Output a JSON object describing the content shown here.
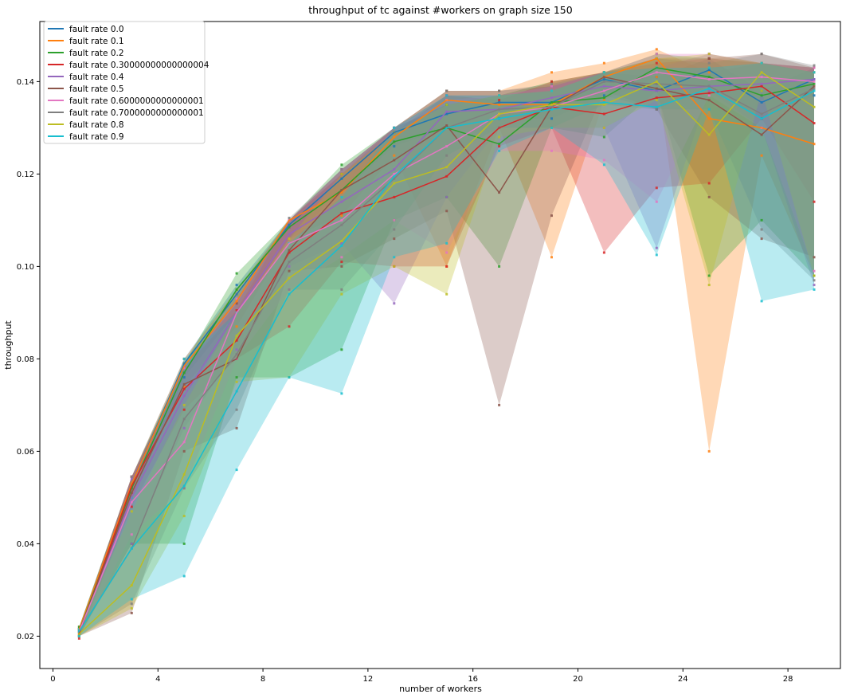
{
  "chart_data": {
    "type": "line",
    "title": "throughput of tc against #workers on graph size 150",
    "xlabel": "number of workers",
    "ylabel": "throughput",
    "xlim": [
      -0.5,
      30.0
    ],
    "ylim": [
      0.013,
      0.153
    ],
    "xticks": [
      0,
      4,
      8,
      12,
      16,
      20,
      24,
      28
    ],
    "yticks": [
      0.02,
      0.04,
      0.06,
      0.08,
      0.1,
      0.12,
      0.14
    ],
    "ytick_labels": [
      "0.02",
      "0.04",
      "0.06",
      "0.08",
      "0.10",
      "0.12",
      "0.14"
    ],
    "grid": false,
    "legend_position": "top-left",
    "x": [
      1,
      3,
      5,
      7,
      9,
      11,
      13,
      15,
      17,
      19,
      21,
      23,
      25,
      27,
      29
    ],
    "series": [
      {
        "name": "fault rate 0.0",
        "color": "#1f77b4",
        "mean": [
          0.0215,
          0.053,
          0.079,
          0.094,
          0.109,
          0.119,
          0.129,
          0.133,
          0.1355,
          0.1355,
          0.1405,
          0.138,
          0.1425,
          0.1355,
          0.1405
        ],
        "min": [
          0.021,
          0.05,
          0.076,
          0.09,
          0.106,
          0.116,
          0.126,
          0.13,
          0.132,
          0.132,
          0.137,
          0.134,
          0.139,
          0.132,
          0.137
        ],
        "max": [
          0.022,
          0.0545,
          0.08,
          0.096,
          0.11,
          0.121,
          0.13,
          0.135,
          0.137,
          0.138,
          0.142,
          0.141,
          0.145,
          0.138,
          0.143
        ]
      },
      {
        "name": "fault rate 0.1",
        "color": "#ff7f0e",
        "mean": [
          0.0215,
          0.053,
          0.0785,
          0.0925,
          0.11,
          0.116,
          0.128,
          0.136,
          0.135,
          0.135,
          0.141,
          0.145,
          0.132,
          0.13,
          0.1265
        ],
        "min": [
          0.0205,
          0.05,
          0.074,
          0.087,
          0.106,
          0.111,
          0.124,
          0.1,
          0.13,
          0.102,
          0.136,
          0.141,
          0.06,
          0.124,
          0.098
        ],
        "max": [
          0.022,
          0.0545,
          0.08,
          0.095,
          0.11,
          0.121,
          0.13,
          0.138,
          0.138,
          0.142,
          0.144,
          0.147,
          0.142,
          0.144,
          0.142
        ]
      },
      {
        "name": "fault rate 0.2",
        "color": "#2ca02c",
        "mean": [
          0.021,
          0.052,
          0.077,
          0.095,
          0.1085,
          0.1165,
          0.127,
          0.13,
          0.1265,
          0.1355,
          0.1365,
          0.143,
          0.141,
          0.137,
          0.1395
        ],
        "min": [
          0.02,
          0.04,
          0.04,
          0.076,
          0.076,
          0.082,
          0.11,
          0.115,
          0.1,
          0.13,
          0.128,
          0.138,
          0.098,
          0.11,
          0.098
        ],
        "max": [
          0.022,
          0.0545,
          0.079,
          0.0985,
          0.11,
          0.122,
          0.13,
          0.135,
          0.137,
          0.14,
          0.142,
          0.146,
          0.145,
          0.144,
          0.143
        ]
      },
      {
        "name": "fault rate 0.30000000000000004",
        "color": "#d62728",
        "mean": [
          0.0205,
          0.0525,
          0.0735,
          0.084,
          0.103,
          0.1115,
          0.115,
          0.1195,
          0.13,
          0.1345,
          0.133,
          0.1365,
          0.1375,
          0.139,
          0.131
        ],
        "min": [
          0.0195,
          0.048,
          0.069,
          0.08,
          0.087,
          0.101,
          0.1,
          0.1,
          0.126,
          0.13,
          0.103,
          0.117,
          0.118,
          0.132,
          0.114
        ],
        "max": [
          0.0215,
          0.0545,
          0.078,
          0.0905,
          0.11,
          0.12,
          0.129,
          0.137,
          0.136,
          0.14,
          0.142,
          0.144,
          0.145,
          0.144,
          0.143
        ]
      },
      {
        "name": "fault rate 0.4",
        "color": "#9467bd",
        "mean": [
          0.021,
          0.05,
          0.072,
          0.09,
          0.107,
          0.114,
          0.121,
          0.1335,
          0.134,
          0.1365,
          0.139,
          0.138,
          0.139,
          0.1395,
          0.1405
        ],
        "min": [
          0.02,
          0.04,
          0.065,
          0.082,
          0.1,
          0.105,
          0.092,
          0.115,
          0.13,
          0.13,
          0.13,
          0.104,
          0.138,
          0.13,
          0.096
        ],
        "max": [
          0.0215,
          0.054,
          0.0785,
          0.093,
          0.11,
          0.121,
          0.13,
          0.137,
          0.137,
          0.139,
          0.142,
          0.143,
          0.146,
          0.144,
          0.142
        ]
      },
      {
        "name": "fault rate 0.5",
        "color": "#8c564b",
        "mean": [
          0.021,
          0.051,
          0.0745,
          0.08,
          0.1035,
          0.1165,
          0.123,
          0.1305,
          0.116,
          0.1345,
          0.141,
          0.1385,
          0.136,
          0.1285,
          0.139
        ],
        "min": [
          0.02,
          0.025,
          0.06,
          0.065,
          0.099,
          0.1,
          0.106,
          0.112,
          0.07,
          0.111,
          0.138,
          0.134,
          0.115,
          0.106,
          0.102
        ],
        "max": [
          0.0215,
          0.0545,
          0.078,
          0.092,
          0.11,
          0.12,
          0.13,
          0.138,
          0.138,
          0.139,
          0.142,
          0.145,
          0.145,
          0.146,
          0.143
        ]
      },
      {
        "name": "fault rate 0.6000000000000001",
        "color": "#e377c2",
        "mean": [
          0.021,
          0.049,
          0.062,
          0.09,
          0.105,
          0.11,
          0.12,
          0.126,
          0.133,
          0.1345,
          0.138,
          0.142,
          0.1405,
          0.141,
          0.14
        ],
        "min": [
          0.02,
          0.042,
          0.052,
          0.08,
          0.095,
          0.102,
          0.11,
          0.103,
          0.125,
          0.125,
          0.123,
          0.114,
          0.137,
          0.13,
          0.099
        ],
        "max": [
          0.0215,
          0.0545,
          0.078,
          0.093,
          0.11,
          0.121,
          0.13,
          0.136,
          0.137,
          0.139,
          0.142,
          0.146,
          0.146,
          0.144,
          0.143
        ]
      },
      {
        "name": "fault rate 0.7000000000000001",
        "color": "#7f7f7f",
        "mean": [
          0.021,
          0.039,
          0.067,
          0.081,
          0.101,
          0.109,
          0.119,
          0.13,
          0.134,
          0.1345,
          0.14,
          0.1395,
          0.139,
          0.133,
          0.1385
        ],
        "min": [
          0.02,
          0.027,
          0.052,
          0.069,
          0.095,
          0.095,
          0.108,
          0.124,
          0.13,
          0.13,
          0.135,
          0.134,
          0.134,
          0.108,
          0.097
        ],
        "max": [
          0.0215,
          0.0545,
          0.079,
          0.094,
          0.1105,
          0.121,
          0.13,
          0.138,
          0.138,
          0.1395,
          0.142,
          0.145,
          0.144,
          0.146,
          0.1435
        ]
      },
      {
        "name": "fault rate 0.8",
        "color": "#bcbd22",
        "mean": [
          0.0205,
          0.031,
          0.055,
          0.085,
          0.0975,
          0.1055,
          0.118,
          0.1215,
          0.133,
          0.135,
          0.135,
          0.14,
          0.1285,
          0.142,
          0.1345
        ],
        "min": [
          0.02,
          0.026,
          0.046,
          0.075,
          0.076,
          0.094,
          0.1,
          0.094,
          0.128,
          0.13,
          0.13,
          0.136,
          0.096,
          0.138,
          0.098
        ],
        "max": [
          0.0215,
          0.047,
          0.07,
          0.09,
          0.106,
          0.12,
          0.129,
          0.135,
          0.137,
          0.138,
          0.142,
          0.145,
          0.146,
          0.144,
          0.142
        ]
      },
      {
        "name": "fault rate 0.9",
        "color": "#17becf",
        "mean": [
          0.021,
          0.039,
          0.0525,
          0.073,
          0.094,
          0.1045,
          0.1195,
          0.13,
          0.132,
          0.134,
          0.1355,
          0.1345,
          0.1385,
          0.132,
          0.138
        ],
        "min": [
          0.02,
          0.028,
          0.033,
          0.056,
          0.076,
          0.0725,
          0.102,
          0.105,
          0.125,
          0.13,
          0.122,
          0.1025,
          0.134,
          0.0925,
          0.095
        ],
        "max": [
          0.0215,
          0.05,
          0.08,
          0.09,
          0.105,
          0.115,
          0.13,
          0.137,
          0.137,
          0.138,
          0.142,
          0.143,
          0.143,
          0.144,
          0.142
        ]
      }
    ]
  }
}
